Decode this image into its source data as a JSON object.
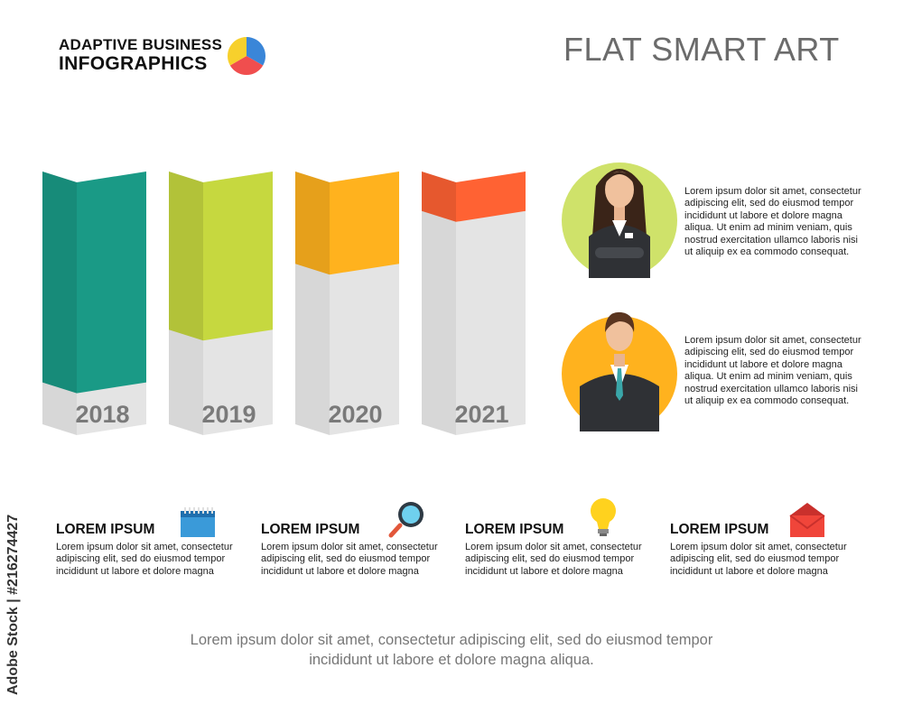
{
  "brand": {
    "line1": "ADAPTIVE BUSINESS",
    "line2": "INFOGRAPHICS",
    "logo_colors": [
      "#3a86d8",
      "#f04e4e",
      "#f7d02c"
    ]
  },
  "title": "FLAT SMART ART",
  "chart_data": {
    "type": "bar",
    "categories": [
      "2018",
      "2019",
      "2020",
      "2021"
    ],
    "values": [
      20,
      40,
      65,
      85
    ],
    "ylim": [
      0,
      100
    ],
    "xlabel": "",
    "ylabel": "",
    "colors": [
      "#1a9a86",
      "#c6d83f",
      "#ffb21e",
      "#ff6233"
    ],
    "track_color": "#e4e4e4",
    "grid": false,
    "legend": false
  },
  "people": [
    {
      "icon": "businesswoman-icon",
      "circle_color": "#cfe26a",
      "text": [
        "Lorem ipsum dolor sit amet, consectetur",
        "adipiscing elit, sed do eiusmod tempor",
        "incididunt ut labore et dolore magna",
        "aliqua. Ut enim ad minim veniam, quis",
        "nostrud exercitation ullamco laboris nisi",
        "ut aliquip ex ea commodo consequat."
      ]
    },
    {
      "icon": "businessman-icon",
      "circle_color": "#ffb21e",
      "text": [
        "Lorem ipsum dolor sit amet, consectetur",
        "adipiscing elit, sed do eiusmod tempor",
        "incididunt ut labore et dolore magna",
        "aliqua. Ut enim ad minim veniam, quis",
        "nostrud exercitation ullamco laboris nisi",
        "ut aliquip ex ea commodo consequat."
      ]
    }
  ],
  "features": [
    {
      "title": "LOREM IPSUM",
      "icon": "calendar-icon",
      "text": [
        "Lorem ipsum dolor sit amet, consectetur",
        "adipiscing elit, sed do eiusmod tempor",
        "incididunt ut labore et dolore magna"
      ]
    },
    {
      "title": "LOREM IPSUM",
      "icon": "magnifier-icon",
      "text": [
        "Lorem ipsum dolor sit amet, consectetur",
        "adipiscing elit, sed do eiusmod tempor",
        "incididunt ut labore et dolore magna"
      ]
    },
    {
      "title": "LOREM IPSUM",
      "icon": "lightbulb-icon",
      "text": [
        "Lorem ipsum dolor sit amet, consectetur",
        "adipiscing elit, sed do eiusmod tempor",
        "incididunt ut labore et dolore magna"
      ]
    },
    {
      "title": "LOREM IPSUM",
      "icon": "envelope-icon",
      "text": [
        "Lorem ipsum dolor sit amet, consectetur",
        "adipiscing elit, sed do eiusmod tempor",
        "incididunt ut labore et dolore magna"
      ]
    }
  ],
  "footer": [
    "Lorem ipsum dolor sit amet, consectetur adipiscing elit, sed do eiusmod tempor",
    "incididunt ut labore et dolore magna aliqua."
  ],
  "stock_id": "Adobe Stock | #216274427"
}
